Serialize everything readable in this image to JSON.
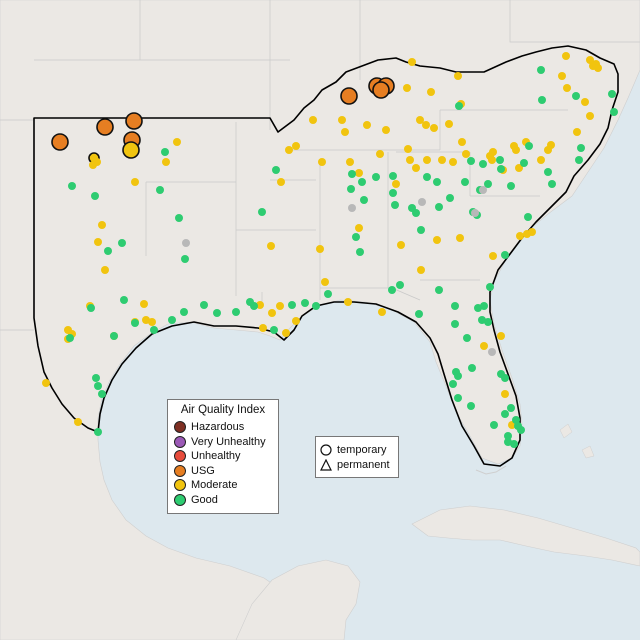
{
  "legend": {
    "title": "Air Quality Index",
    "items": [
      {
        "label": "Hazardous",
        "color": "#7e2f23"
      },
      {
        "label": "Very Unhealthy",
        "color": "#9b59b6"
      },
      {
        "label": "Unhealthy",
        "color": "#e74c3c"
      },
      {
        "label": "USG",
        "color": "#e67e22"
      },
      {
        "label": "Moderate",
        "color": "#f1c40f"
      },
      {
        "label": "Good",
        "color": "#2ecc71"
      }
    ]
  },
  "shape_legend": {
    "temporary": "temporary",
    "permanent": "permanent"
  },
  "colors": {
    "water": "#dde8ee",
    "land": "#ebe8e4",
    "region_outline": "#000000",
    "no_data": "#b8b8b8"
  },
  "monitors": {
    "usg": 8,
    "moderate": 96,
    "good": 88,
    "no_data": 6
  }
}
